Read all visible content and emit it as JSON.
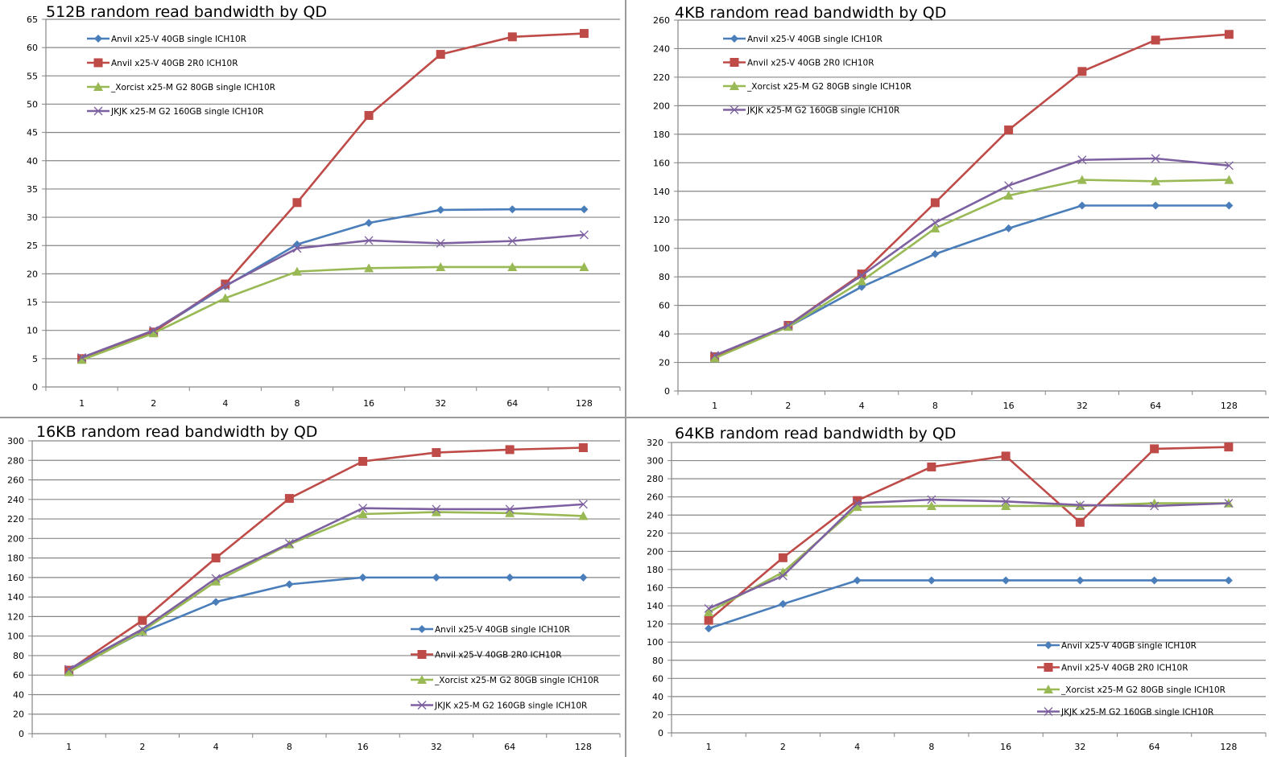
{
  "colors": {
    "series": [
      "#4a7ebb",
      "#be4b48",
      "#98b954",
      "#7d60a0"
    ],
    "grid": "#868686",
    "axis": "#868686",
    "divider": "#9a9a9a"
  },
  "chart_data": [
    {
      "type": "line",
      "title": "512B random read bandwidth by QD",
      "xlabel": "",
      "ylabel": "",
      "categories": [
        "1",
        "2",
        "4",
        "8",
        "16",
        "32",
        "64",
        "128"
      ],
      "ylim": [
        0,
        65
      ],
      "yticks": [
        0,
        5,
        10,
        15,
        20,
        25,
        30,
        35,
        40,
        45,
        50,
        55,
        60,
        65
      ],
      "grid": true,
      "legend_position": "top-left",
      "series": [
        {
          "name": "Anvil x25-V 40GB single ICH10R",
          "marker": "diamond",
          "values": [
            5.0,
            9.8,
            17.8,
            25.2,
            29.0,
            31.3,
            31.4,
            31.4
          ]
        },
        {
          "name": "Anvil x25-V 40GB 2R0 ICH10R",
          "marker": "square",
          "values": [
            5.0,
            9.7,
            18.2,
            32.6,
            48.0,
            58.8,
            61.9,
            62.5
          ]
        },
        {
          "name": "_Xorcist x25-M G2 80GB single ICH10R",
          "marker": "triangle",
          "values": [
            4.8,
            9.5,
            15.7,
            20.4,
            21.0,
            21.2,
            21.2,
            21.2
          ]
        },
        {
          "name": "JKJK x25-M G2 160GB single ICH10R",
          "marker": "x",
          "values": [
            5.2,
            10.0,
            17.9,
            24.5,
            25.9,
            25.4,
            25.8,
            26.9
          ]
        }
      ]
    },
    {
      "type": "line",
      "title": "4KB random read bandwidth by QD",
      "xlabel": "",
      "ylabel": "",
      "categories": [
        "1",
        "2",
        "4",
        "8",
        "16",
        "32",
        "64",
        "128"
      ],
      "ylim": [
        0,
        260
      ],
      "yticks": [
        0,
        20,
        40,
        60,
        80,
        100,
        120,
        140,
        160,
        180,
        200,
        220,
        240,
        260
      ],
      "grid": true,
      "legend_position": "top-left",
      "series": [
        {
          "name": "Anvil x25-V 40GB single ICH10R",
          "marker": "diamond",
          "values": [
            24,
            45,
            73,
            96,
            114,
            130,
            130,
            130
          ]
        },
        {
          "name": "Anvil x25-V 40GB 2R0 ICH10R",
          "marker": "square",
          "values": [
            24,
            46,
            82,
            132,
            183,
            224,
            246,
            250
          ]
        },
        {
          "name": "_Xorcist x25-M G2 80GB single ICH10R",
          "marker": "triangle",
          "values": [
            23,
            45,
            77,
            114,
            137,
            148,
            147,
            148
          ]
        },
        {
          "name": "JKJK x25-M G2 160GB single ICH10R",
          "marker": "x",
          "values": [
            25,
            46,
            81,
            118,
            144,
            162,
            163,
            158
          ]
        }
      ]
    },
    {
      "type": "line",
      "title": "16KB random read bandwidth by QD",
      "xlabel": "",
      "ylabel": "",
      "categories": [
        "1",
        "2",
        "4",
        "8",
        "16",
        "32",
        "64",
        "128"
      ],
      "ylim": [
        0,
        300
      ],
      "yticks": [
        0,
        20,
        40,
        60,
        80,
        100,
        120,
        140,
        160,
        180,
        200,
        220,
        240,
        260,
        280,
        300
      ],
      "grid": true,
      "legend_position": "bottom-right",
      "series": [
        {
          "name": "Anvil x25-V 40GB single ICH10R",
          "marker": "diamond",
          "values": [
            65,
            104,
            135,
            153,
            160,
            160,
            160,
            160
          ]
        },
        {
          "name": "Anvil x25-V 40GB 2R0 ICH10R",
          "marker": "square",
          "values": [
            65,
            116,
            180,
            241,
            279,
            288,
            291,
            293
          ]
        },
        {
          "name": "_Xorcist x25-M G2 80GB single ICH10R",
          "marker": "triangle",
          "values": [
            63,
            105,
            156,
            194,
            225,
            227,
            226,
            223
          ]
        },
        {
          "name": "JKJK x25-M G2 160GB single ICH10R",
          "marker": "x",
          "values": [
            66,
            107,
            159,
            195,
            231,
            230,
            230,
            235
          ]
        }
      ]
    },
    {
      "type": "line",
      "title": "64KB random read bandwidth by QD",
      "xlabel": "",
      "ylabel": "",
      "categories": [
        "1",
        "2",
        "4",
        "8",
        "16",
        "32",
        "64",
        "128"
      ],
      "ylim": [
        0,
        320
      ],
      "yticks": [
        0,
        20,
        40,
        60,
        80,
        100,
        120,
        140,
        160,
        180,
        200,
        220,
        240,
        260,
        280,
        300,
        320
      ],
      "grid": true,
      "legend_position": "bottom-right",
      "series": [
        {
          "name": "Anvil x25-V 40GB single ICH10R",
          "marker": "diamond",
          "values": [
            115,
            142,
            168,
            168,
            168,
            168,
            168,
            168
          ]
        },
        {
          "name": "Anvil x25-V 40GB 2R0 ICH10R",
          "marker": "square",
          "values": [
            124,
            193,
            256,
            293,
            305,
            232,
            313,
            315
          ]
        },
        {
          "name": "_Xorcist x25-M G2 80GB single ICH10R",
          "marker": "triangle",
          "values": [
            133,
            177,
            249,
            250,
            250,
            250,
            253,
            253
          ]
        },
        {
          "name": "JKJK x25-M G2 160GB single ICH10R",
          "marker": "x",
          "values": [
            137,
            173,
            253,
            257,
            255,
            251,
            250,
            253
          ]
        }
      ]
    }
  ]
}
